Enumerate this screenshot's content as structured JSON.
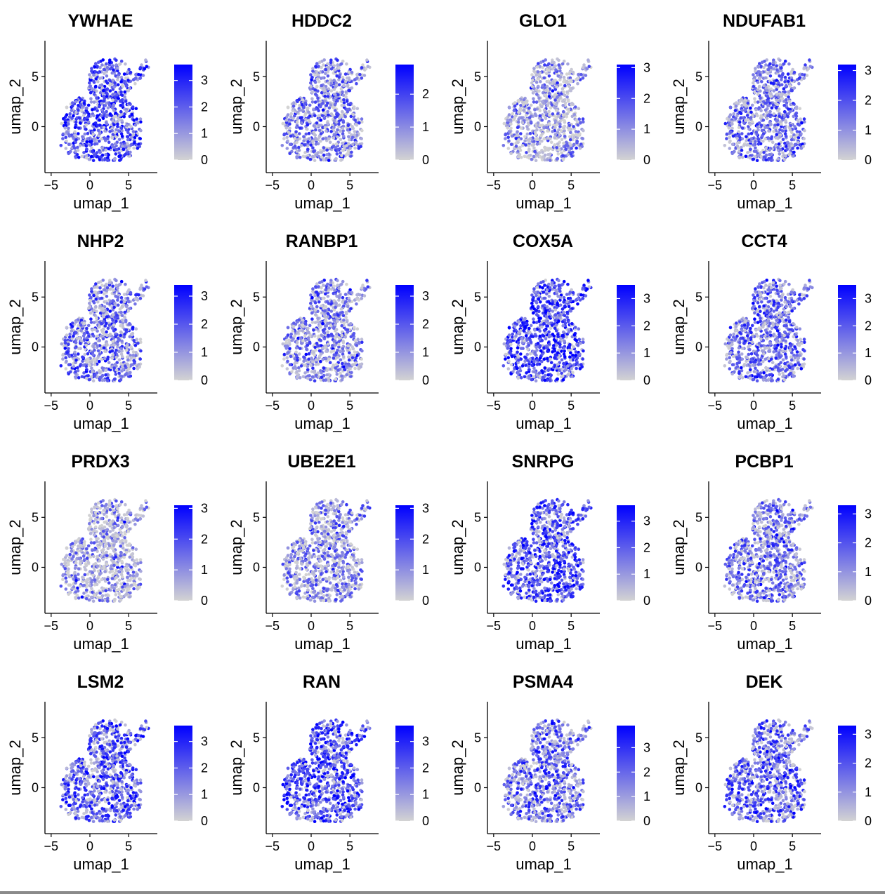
{
  "shared": {
    "xlabel": "umap_1",
    "ylabel": "umap_2",
    "x_ticks": [
      "−5",
      "0",
      "5"
    ],
    "y_ticks": [
      "0",
      "5"
    ]
  },
  "colors": {
    "low": "#d3d3d3",
    "high": "#0000ff",
    "axis": "#000000"
  },
  "chart_data": [
    {
      "type": "scatter",
      "title": "YWHAE",
      "x_ticks": [
        -5,
        0,
        5
      ],
      "y_ticks": [
        0,
        5
      ],
      "xlabel": "umap_1",
      "ylabel": "umap_2",
      "color_max": 3.6,
      "color_ticks": [
        0,
        1,
        2,
        3
      ],
      "mean_level": 0.62
    },
    {
      "type": "scatter",
      "title": "HDDC2",
      "x_ticks": [
        -5,
        0,
        5
      ],
      "y_ticks": [
        0,
        5
      ],
      "xlabel": "umap_1",
      "ylabel": "umap_2",
      "color_max": 2.9,
      "color_ticks": [
        0,
        1,
        2
      ],
      "mean_level": 0.4
    },
    {
      "type": "scatter",
      "title": "GLO1",
      "x_ticks": [
        -5,
        0,
        5
      ],
      "y_ticks": [
        0,
        5
      ],
      "xlabel": "umap_1",
      "ylabel": "umap_2",
      "color_max": 3.1,
      "color_ticks": [
        0,
        1,
        2,
        3
      ],
      "mean_level": 0.28
    },
    {
      "type": "scatter",
      "title": "NDUFAB1",
      "x_ticks": [
        -5,
        0,
        5
      ],
      "y_ticks": [
        0,
        5
      ],
      "xlabel": "umap_1",
      "ylabel": "umap_2",
      "color_max": 3.2,
      "color_ticks": [
        0,
        1,
        2,
        3
      ],
      "mean_level": 0.45
    },
    {
      "type": "scatter",
      "title": "NHP2",
      "x_ticks": [
        -5,
        0,
        5
      ],
      "y_ticks": [
        0,
        5
      ],
      "xlabel": "umap_1",
      "ylabel": "umap_2",
      "color_max": 3.4,
      "color_ticks": [
        0,
        1,
        2,
        3
      ],
      "mean_level": 0.45
    },
    {
      "type": "scatter",
      "title": "RANBP1",
      "x_ticks": [
        -5,
        0,
        5
      ],
      "y_ticks": [
        0,
        5
      ],
      "xlabel": "umap_1",
      "ylabel": "umap_2",
      "color_max": 3.4,
      "color_ticks": [
        0,
        1,
        2,
        3
      ],
      "mean_level": 0.38
    },
    {
      "type": "scatter",
      "title": "COX5A",
      "x_ticks": [
        -5,
        0,
        5
      ],
      "y_ticks": [
        0,
        5
      ],
      "xlabel": "umap_1",
      "ylabel": "umap_2",
      "color_max": 3.5,
      "color_ticks": [
        0,
        1,
        2,
        3
      ],
      "mean_level": 0.65
    },
    {
      "type": "scatter",
      "title": "CCT4",
      "x_ticks": [
        -5,
        0,
        5
      ],
      "y_ticks": [
        0,
        5
      ],
      "xlabel": "umap_1",
      "ylabel": "umap_2",
      "color_max": 3.5,
      "color_ticks": [
        0,
        1,
        2,
        3
      ],
      "mean_level": 0.48
    },
    {
      "type": "scatter",
      "title": "PRDX3",
      "x_ticks": [
        -5,
        0,
        5
      ],
      "y_ticks": [
        0,
        5
      ],
      "xlabel": "umap_1",
      "ylabel": "umap_2",
      "color_max": 3.1,
      "color_ticks": [
        0,
        1,
        2,
        3
      ],
      "mean_level": 0.25
    },
    {
      "type": "scatter",
      "title": "UBE2E1",
      "x_ticks": [
        -5,
        0,
        5
      ],
      "y_ticks": [
        0,
        5
      ],
      "xlabel": "umap_1",
      "ylabel": "umap_2",
      "color_max": 3.1,
      "color_ticks": [
        0,
        1,
        2,
        3
      ],
      "mean_level": 0.32
    },
    {
      "type": "scatter",
      "title": "SNRPG",
      "x_ticks": [
        -5,
        0,
        5
      ],
      "y_ticks": [
        0,
        5
      ],
      "xlabel": "umap_1",
      "ylabel": "umap_2",
      "color_max": 3.6,
      "color_ticks": [
        0,
        1,
        2,
        3
      ],
      "mean_level": 0.6
    },
    {
      "type": "scatter",
      "title": "PCBP1",
      "x_ticks": [
        -5,
        0,
        5
      ],
      "y_ticks": [
        0,
        5
      ],
      "xlabel": "umap_1",
      "ylabel": "umap_2",
      "color_max": 3.3,
      "color_ticks": [
        0,
        1,
        2,
        3
      ],
      "mean_level": 0.42
    },
    {
      "type": "scatter",
      "title": "LSM2",
      "x_ticks": [
        -5,
        0,
        5
      ],
      "y_ticks": [
        0,
        5
      ],
      "xlabel": "umap_1",
      "ylabel": "umap_2",
      "color_max": 3.6,
      "color_ticks": [
        0,
        1,
        2,
        3
      ],
      "mean_level": 0.55
    },
    {
      "type": "scatter",
      "title": "RAN",
      "x_ticks": [
        -5,
        0,
        5
      ],
      "y_ticks": [
        0,
        5
      ],
      "xlabel": "umap_1",
      "ylabel": "umap_2",
      "color_max": 3.6,
      "color_ticks": [
        0,
        1,
        2,
        3
      ],
      "mean_level": 0.62
    },
    {
      "type": "scatter",
      "title": "PSMA4",
      "x_ticks": [
        -5,
        0,
        5
      ],
      "y_ticks": [
        0,
        5
      ],
      "xlabel": "umap_1",
      "ylabel": "umap_2",
      "color_max": 3.9,
      "color_ticks": [
        0,
        1,
        2,
        3
      ],
      "mean_level": 0.48
    },
    {
      "type": "scatter",
      "title": "DEK",
      "x_ticks": [
        -5,
        0,
        5
      ],
      "y_ticks": [
        0,
        5
      ],
      "xlabel": "umap_1",
      "ylabel": "umap_2",
      "color_max": 3.3,
      "color_ticks": [
        0,
        1,
        2,
        3
      ],
      "mean_level": 0.5
    }
  ]
}
